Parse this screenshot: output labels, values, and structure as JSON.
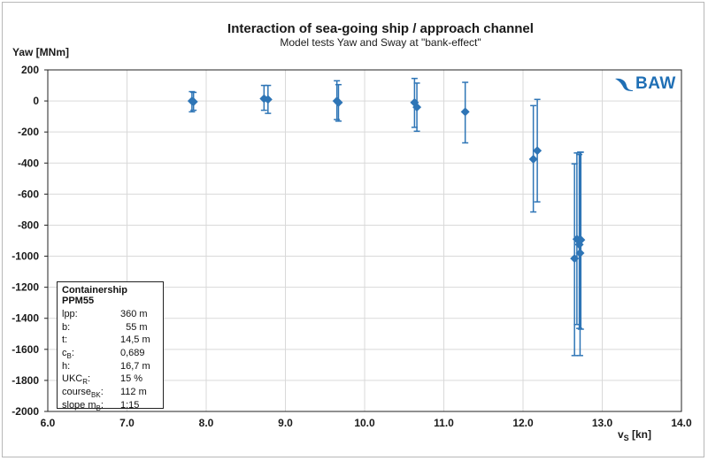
{
  "chart_data": {
    "type": "scatter",
    "title": "Interaction of sea-going ship / approach channel",
    "subtitle": "Model tests Yaw and Sway at \"bank-effect\"",
    "ylabel": "Yaw [MNm]",
    "xlabel_main": "v",
    "xlabel_sub": "S",
    "xlabel_unit": " [kn]",
    "xlim": [
      6.0,
      14.0
    ],
    "ylim": [
      -2000,
      200
    ],
    "xticks": [
      "6.0",
      "7.0",
      "8.0",
      "9.0",
      "10.0",
      "11.0",
      "12.0",
      "13.0",
      "14.0"
    ],
    "yticks": [
      "200",
      "0",
      "-200",
      "-400",
      "-600",
      "-800",
      "-1000",
      "-1200",
      "-1400",
      "-1600",
      "-1800",
      "-2000"
    ],
    "grid": true,
    "marker_color": "#2e75b6",
    "points": [
      {
        "x": 7.82,
        "y": 0,
        "low": -70,
        "high": 60
      },
      {
        "x": 7.84,
        "y": -5,
        "low": -60,
        "high": 55
      },
      {
        "x": 8.73,
        "y": 15,
        "low": -60,
        "high": 100
      },
      {
        "x": 8.78,
        "y": 10,
        "low": -80,
        "high": 100
      },
      {
        "x": 9.65,
        "y": 0,
        "low": -120,
        "high": 130
      },
      {
        "x": 9.67,
        "y": -10,
        "low": -130,
        "high": 105
      },
      {
        "x": 10.63,
        "y": -10,
        "low": -170,
        "high": 145
      },
      {
        "x": 10.66,
        "y": -40,
        "low": -195,
        "high": 115
      },
      {
        "x": 11.27,
        "y": -70,
        "low": -270,
        "high": 120
      },
      {
        "x": 12.13,
        "y": -375,
        "low": -715,
        "high": -30
      },
      {
        "x": 12.18,
        "y": -320,
        "low": -650,
        "high": 10
      },
      {
        "x": 12.65,
        "y": -1015,
        "low": -1640,
        "high": -405
      },
      {
        "x": 12.68,
        "y": -890,
        "low": -1440,
        "high": -335
      },
      {
        "x": 12.71,
        "y": -925,
        "low": -1465,
        "high": -345
      },
      {
        "x": 12.72,
        "y": -980,
        "low": -1640,
        "high": -330
      },
      {
        "x": 12.73,
        "y": -895,
        "low": -1470,
        "high": -330
      }
    ],
    "legend": {
      "title": "Containership PPM55",
      "rows": [
        {
          "key": "lpp:",
          "sub": "",
          "value": "360 m"
        },
        {
          "key": "b:",
          "sub": "",
          "value": "  55 m"
        },
        {
          "key": "t:",
          "sub": "",
          "value": "14,5 m"
        },
        {
          "key": "c",
          "sub": "B",
          "value": "0,689"
        },
        {
          "key": "h:",
          "sub": "",
          "value": "16,7 m"
        },
        {
          "key": "UKC",
          "sub": "R",
          "value": "15 %"
        },
        {
          "key": "course",
          "sub": "BK",
          "value": "112 m"
        },
        {
          "key": "slope m",
          "sub": "B",
          "value": "1:15"
        }
      ]
    }
  },
  "logo": {
    "text": "BAW",
    "color": "#1f6fb5"
  }
}
